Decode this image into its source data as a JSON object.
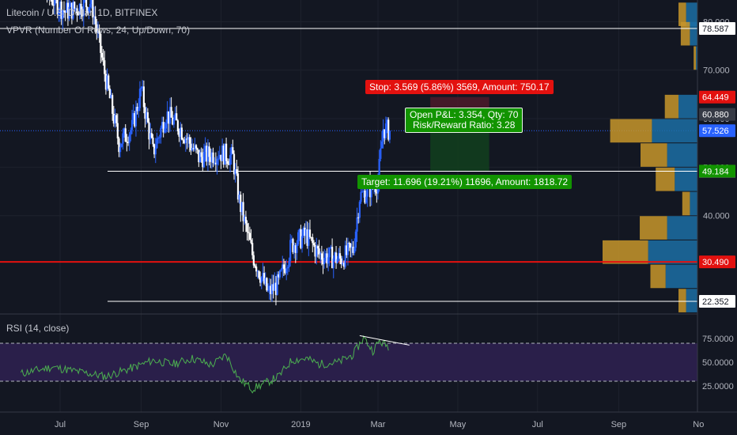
{
  "header": {
    "symbol_title": "Litecoin / U.S. Dollar, 1D, BITFINEX",
    "vpvr_label": "VPVR (Number Of Rows, 24, Up/Down, 70)",
    "rsi_label": "RSI (14, close)"
  },
  "colors": {
    "background": "#131722",
    "candle_up": "#2962ff",
    "candle_down": "#ffffff",
    "rsi_line": "#4caf50",
    "rsi_band": "#2a1f4a",
    "stop_zone": "#4a1a2a",
    "target_zone": "#123d1e",
    "vp_up": "#1c6ea4",
    "vp_down": "#c8962a"
  },
  "trade": {
    "stop_label": "Stop: 3.569 (5.86%) 3569, Amount: 750.17",
    "target_label": "Target: 11.696 (19.21%) 11696, Amount: 1818.72",
    "pnl_label": "Open P&L: 3.354, Qty: 70",
    "rr_label": "Risk/Reward Ratio: 3.28"
  },
  "chart_data": {
    "type": "candlestick",
    "title": "Litecoin / U.S. Dollar, 1D, BITFINEX",
    "xlabel": "",
    "ylabel": "",
    "x_ticks": [
      "Jul",
      "Sep",
      "Nov",
      "2019",
      "Mar",
      "May",
      "Jul",
      "Sep",
      "No"
    ],
    "y_ticks": [
      40.0,
      50.0,
      60.0,
      70.0,
      80.0
    ],
    "y_tick_labels": [
      "40.000",
      "50.000",
      "60.000",
      "70.000",
      "80.000"
    ],
    "price_tags": [
      {
        "value": 78.587,
        "label": "78.587",
        "color": "#ffffff"
      },
      {
        "value": 64.449,
        "label": "64.449",
        "color": "#e3110f"
      },
      {
        "value": 60.88,
        "label": "60.880",
        "color": "#363a45"
      },
      {
        "value": 57.526,
        "label": "57.526",
        "color": "#2962ff"
      },
      {
        "value": 49.165,
        "label": "49.165",
        "color": "#ffffff"
      },
      {
        "value": 49.184,
        "label": "49.184",
        "color": "#129400"
      },
      {
        "value": 30.49,
        "label": "30.490",
        "color": "#e3110f"
      },
      {
        "value": 22.352,
        "label": "22.352",
        "color": "#ffffff"
      }
    ],
    "horizontal_lines": [
      78.587,
      49.165,
      30.49,
      22.352
    ],
    "current_price": 57.526,
    "close_series": [
      {
        "date": "2018-06-01",
        "close": 100
      },
      {
        "date": "2018-06-20",
        "close": 86
      },
      {
        "date": "2018-07-05",
        "close": 82
      },
      {
        "date": "2018-07-25",
        "close": 84
      },
      {
        "date": "2018-08-05",
        "close": 68
      },
      {
        "date": "2018-08-15",
        "close": 55
      },
      {
        "date": "2018-08-25",
        "close": 58
      },
      {
        "date": "2018-09-01",
        "close": 66
      },
      {
        "date": "2018-09-10",
        "close": 53
      },
      {
        "date": "2018-09-20",
        "close": 61
      },
      {
        "date": "2018-10-01",
        "close": 58
      },
      {
        "date": "2018-10-15",
        "close": 52
      },
      {
        "date": "2018-10-31",
        "close": 53
      },
      {
        "date": "2018-11-10",
        "close": 52
      },
      {
        "date": "2018-11-15",
        "close": 43
      },
      {
        "date": "2018-11-25",
        "close": 32
      },
      {
        "date": "2018-12-07",
        "close": 24
      },
      {
        "date": "2018-12-15",
        "close": 26
      },
      {
        "date": "2018-12-25",
        "close": 34
      },
      {
        "date": "2019-01-05",
        "close": 36
      },
      {
        "date": "2019-01-15",
        "close": 32
      },
      {
        "date": "2019-01-31",
        "close": 31
      },
      {
        "date": "2019-02-10",
        "close": 33
      },
      {
        "date": "2019-02-15",
        "close": 44
      },
      {
        "date": "2019-02-25",
        "close": 46
      },
      {
        "date": "2019-03-01",
        "close": 47
      },
      {
        "date": "2019-03-05",
        "close": 58
      },
      {
        "date": "2019-03-10",
        "close": 57.5
      }
    ],
    "volume_profile": [
      {
        "price": 81.5,
        "up": 1.5,
        "down": 1.0
      },
      {
        "price": 77.5,
        "up": 1.0,
        "down": 1.2
      },
      {
        "price": 72.5,
        "up": 0.2,
        "down": 0.3
      },
      {
        "price": 62.5,
        "up": 2.5,
        "down": 1.8
      },
      {
        "price": 57.5,
        "up": 6.0,
        "down": 5.5
      },
      {
        "price": 52.5,
        "up": 4.0,
        "down": 3.5
      },
      {
        "price": 47.5,
        "up": 3.0,
        "down": 2.5
      },
      {
        "price": 42.5,
        "up": 1.0,
        "down": 1.0
      },
      {
        "price": 37.5,
        "up": 4.0,
        "down": 3.6
      },
      {
        "price": 32.5,
        "up": 6.5,
        "down": 6.0
      },
      {
        "price": 27.5,
        "up": 4.2,
        "down": 2.0
      },
      {
        "price": 22.5,
        "up": 1.5,
        "down": 1.0
      }
    ],
    "rsi": {
      "label": "RSI (14, close)",
      "y_ticks": [
        25,
        50,
        75
      ],
      "y_tick_labels": [
        "25.0000",
        "50.0000",
        "75.0000"
      ],
      "upper": 70,
      "lower": 30,
      "values": [
        {
          "date": "2018-06-01",
          "rsi": 38
        },
        {
          "date": "2018-06-25",
          "rsi": 45
        },
        {
          "date": "2018-07-15",
          "rsi": 40
        },
        {
          "date": "2018-08-05",
          "rsi": 35
        },
        {
          "date": "2018-08-25",
          "rsi": 44
        },
        {
          "date": "2018-09-10",
          "rsi": 52
        },
        {
          "date": "2018-09-25",
          "rsi": 48
        },
        {
          "date": "2018-10-10",
          "rsi": 54
        },
        {
          "date": "2018-10-25",
          "rsi": 47
        },
        {
          "date": "2018-11-05",
          "rsi": 58
        },
        {
          "date": "2018-11-15",
          "rsi": 32
        },
        {
          "date": "2018-11-25",
          "rsi": 22
        },
        {
          "date": "2018-12-05",
          "rsi": 28
        },
        {
          "date": "2018-12-15",
          "rsi": 35
        },
        {
          "date": "2018-12-25",
          "rsi": 52
        },
        {
          "date": "2019-01-05",
          "rsi": 54
        },
        {
          "date": "2019-01-15",
          "rsi": 48
        },
        {
          "date": "2019-01-30",
          "rsi": 50
        },
        {
          "date": "2019-02-10",
          "rsi": 58
        },
        {
          "date": "2019-02-18",
          "rsi": 76
        },
        {
          "date": "2019-02-25",
          "rsi": 62
        },
        {
          "date": "2019-03-02",
          "rsi": 72
        },
        {
          "date": "2019-03-10",
          "rsi": 66
        }
      ],
      "trendline": [
        {
          "date": "2019-02-15",
          "rsi": 78
        },
        {
          "date": "2019-03-25",
          "rsi": 68
        }
      ]
    }
  }
}
